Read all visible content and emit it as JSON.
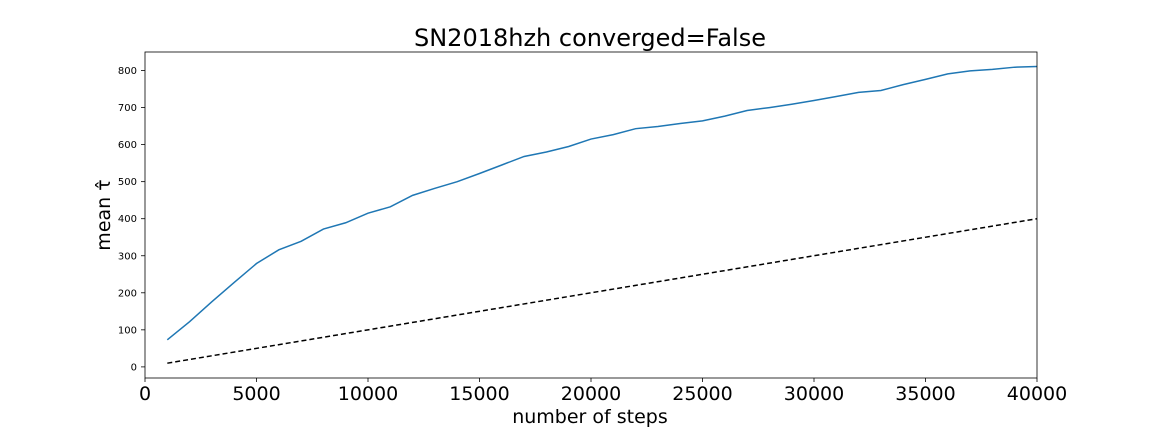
{
  "chart_data": {
    "type": "line",
    "title": "SN2018hzh  converged=False",
    "xlabel": "number of steps",
    "ylabel": "mean τ̂",
    "xlim": [
      0,
      40000
    ],
    "ylim": [
      -30,
      850
    ],
    "xticks": [
      0,
      5000,
      10000,
      15000,
      20000,
      25000,
      30000,
      35000,
      40000
    ],
    "yticks": [
      0,
      100,
      200,
      300,
      400,
      500,
      600,
      700,
      800
    ],
    "grid": false,
    "series": [
      {
        "color": "#1f77b4",
        "style": "solid",
        "x": [
          1000,
          2000,
          3000,
          4000,
          5000,
          6000,
          7000,
          8000,
          9000,
          10000,
          11000,
          12000,
          13000,
          14000,
          15000,
          16000,
          17000,
          18000,
          19000,
          20000,
          21000,
          22000,
          23000,
          24000,
          25000,
          26000,
          27000,
          28000,
          29000,
          30000,
          31000,
          32000,
          33000,
          34000,
          35000,
          36000,
          37000,
          38000,
          39000,
          40000
        ],
        "y": [
          73,
          122,
          176,
          228,
          279,
          316,
          339,
          372,
          389,
          415,
          432,
          463,
          482,
          500,
          522,
          545,
          568,
          580,
          595,
          615,
          627,
          643,
          649,
          657,
          664,
          677,
          692,
          700,
          709,
          719,
          730,
          741,
          746,
          762,
          776,
          791,
          799,
          803,
          809,
          811
        ]
      },
      {
        "color": "#000000",
        "style": "dashed",
        "x": [
          1000,
          40000
        ],
        "y": [
          10,
          400
        ]
      }
    ]
  }
}
